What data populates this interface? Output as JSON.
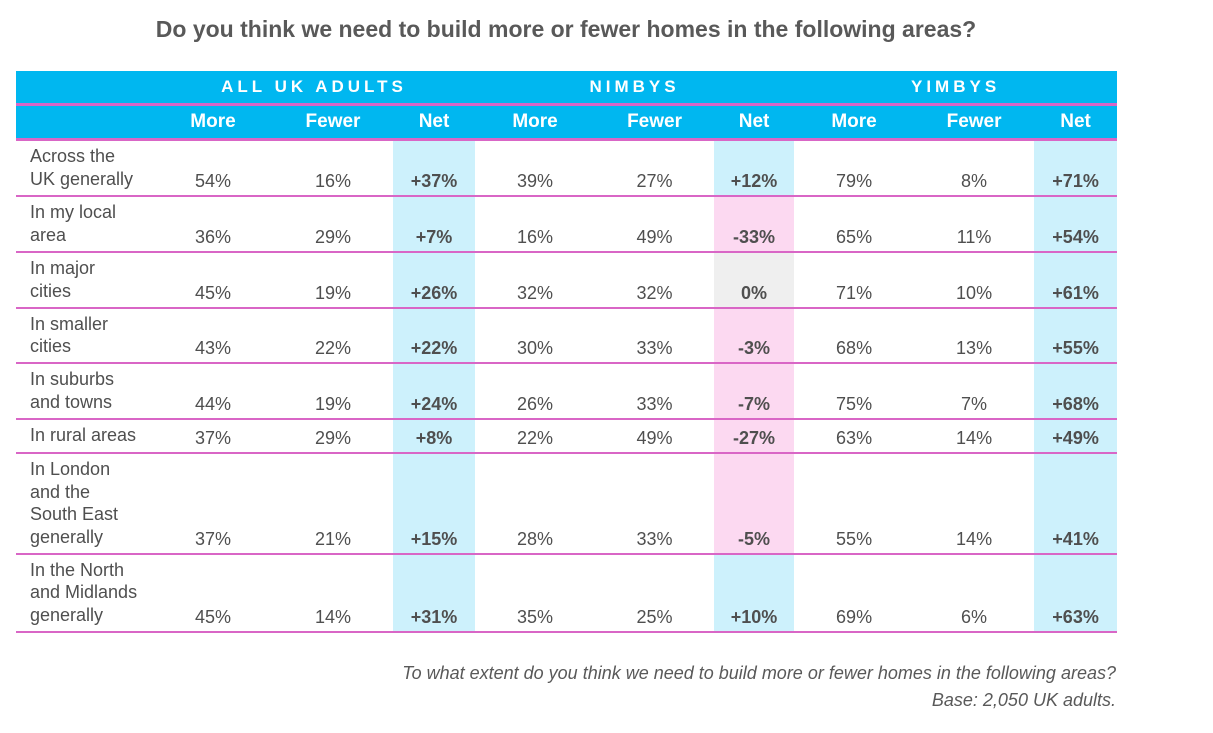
{
  "title": "Do you think we need to build more or fewer homes in the following areas?",
  "chart_data": {
    "type": "table",
    "groups": [
      "ALL UK ADULTS",
      "NIMBYS",
      "YIMBYS"
    ],
    "columns": [
      "More",
      "Fewer",
      "Net",
      "More",
      "Fewer",
      "Net",
      "More",
      "Fewer",
      "Net"
    ],
    "rows": [
      {
        "label": "Across the UK generally",
        "lines": [
          "Across the",
          "UK generally"
        ],
        "values": [
          "54%",
          "16%",
          "+37%",
          "39%",
          "27%",
          "+12%",
          "79%",
          "8%",
          "+71%"
        ],
        "net_shading": [
          "blue",
          "blue",
          "blue"
        ]
      },
      {
        "label": "In my local area",
        "lines": [
          "In my local",
          "area"
        ],
        "values": [
          "36%",
          "29%",
          "+7%",
          "16%",
          "49%",
          "-33%",
          "65%",
          "11%",
          "+54%"
        ],
        "net_shading": [
          "blue",
          "pink",
          "blue"
        ]
      },
      {
        "label": "In major cities",
        "lines": [
          "In major",
          "cities"
        ],
        "values": [
          "45%",
          "19%",
          "+26%",
          "32%",
          "32%",
          "0%",
          "71%",
          "10%",
          "+61%"
        ],
        "net_shading": [
          "blue",
          "grey",
          "blue"
        ]
      },
      {
        "label": "In smaller cities",
        "lines": [
          "In smaller",
          "cities"
        ],
        "values": [
          "43%",
          "22%",
          "+22%",
          "30%",
          "33%",
          "-3%",
          "68%",
          "13%",
          "+55%"
        ],
        "net_shading": [
          "blue",
          "pink",
          "blue"
        ]
      },
      {
        "label": "In suburbs and towns",
        "lines": [
          "In suburbs",
          "and towns"
        ],
        "values": [
          "44%",
          "19%",
          "+24%",
          "26%",
          "33%",
          "-7%",
          "75%",
          "7%",
          "+68%"
        ],
        "net_shading": [
          "blue",
          "pink",
          "blue"
        ]
      },
      {
        "label": "In rural areas",
        "lines": [
          "In rural areas"
        ],
        "values": [
          "37%",
          "29%",
          "+8%",
          "22%",
          "49%",
          "-27%",
          "63%",
          "14%",
          "+49%"
        ],
        "net_shading": [
          "blue",
          "pink",
          "blue"
        ]
      },
      {
        "label": "In London and the South East generally",
        "lines": [
          "In London",
          "and the",
          "South East",
          "generally"
        ],
        "values": [
          "37%",
          "21%",
          "+15%",
          "28%",
          "33%",
          "-5%",
          "55%",
          "14%",
          "+41%"
        ],
        "net_shading": [
          "blue",
          "pink",
          "blue"
        ]
      },
      {
        "label": "In the North and Midlands generally",
        "lines": [
          "In the North",
          "and Midlands",
          "generally"
        ],
        "values": [
          "45%",
          "14%",
          "+31%",
          "35%",
          "25%",
          "+10%",
          "69%",
          "6%",
          "+63%"
        ],
        "net_shading": [
          "blue",
          "blue",
          "blue"
        ]
      }
    ]
  },
  "footer": {
    "question": "To what extent do you think we need to build more or fewer homes in the following areas?",
    "base": "Base: 2,050 UK adults."
  },
  "colors": {
    "header_bg": "#00b7f0",
    "divider": "#d966c6",
    "blue": "#cdf1fc",
    "pink": "#fcd9f1",
    "grey": "#efefef"
  }
}
